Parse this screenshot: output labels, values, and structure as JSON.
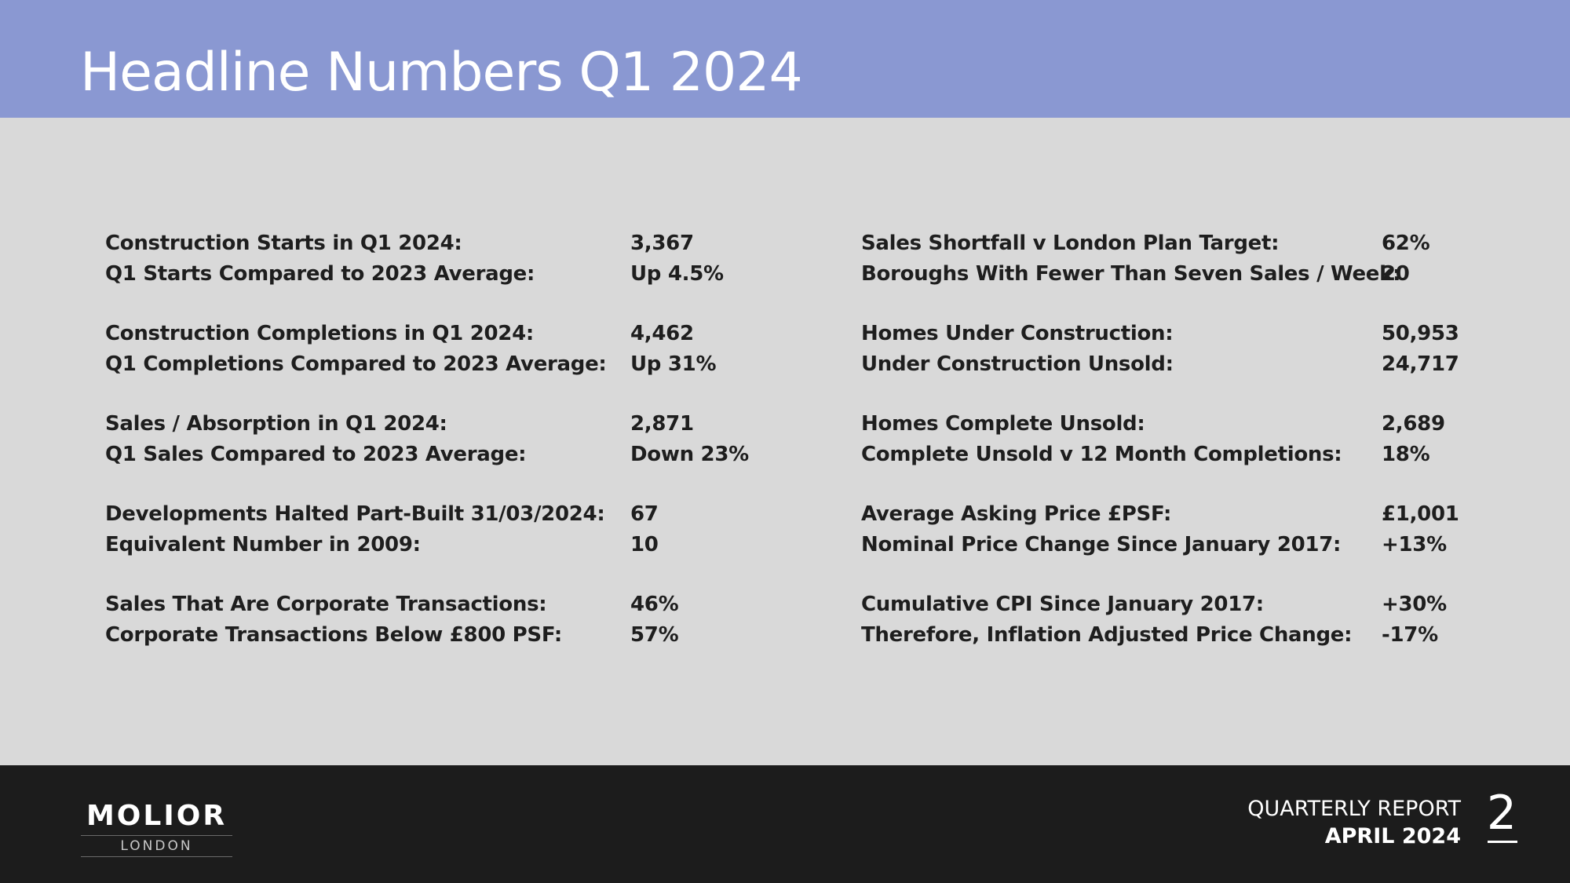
{
  "header": {
    "title": "Headline Numbers Q1 2024",
    "background_color": "#8a98d2"
  },
  "left_column": [
    [
      {
        "label": "Construction Starts in Q1 2024:",
        "value": "3,367"
      },
      {
        "label": "Q1 Starts Compared to 2023 Average:",
        "value": "Up 4.5%"
      }
    ],
    [
      {
        "label": "Construction Completions in Q1 2024:",
        "value": "4,462"
      },
      {
        "label": "Q1 Completions Compared to 2023 Average:",
        "value": "Up 31%"
      }
    ],
    [
      {
        "label": "Sales / Absorption in Q1 2024:",
        "value": "2,871"
      },
      {
        "label": "Q1 Sales Compared to 2023 Average:",
        "value": "Down 23%"
      }
    ],
    [
      {
        "label": "Developments Halted Part-Built 31/03/2024:",
        "value": "67"
      },
      {
        "label": "Equivalent Number in 2009:",
        "value": "10"
      }
    ],
    [
      {
        "label": "Sales That Are Corporate Transactions:",
        "value": "46%"
      },
      {
        "label": "Corporate Transactions Below £800 PSF:",
        "value": "57%"
      }
    ]
  ],
  "right_column": [
    [
      {
        "label": "Sales Shortfall v London Plan Target:",
        "value": "62%"
      },
      {
        "label": "Boroughs With Fewer Than Seven Sales / Week:",
        "value": "20"
      }
    ],
    [
      {
        "label": "Homes Under Construction:",
        "value": "50,953"
      },
      {
        "label": "Under Construction Unsold:",
        "value": "24,717"
      }
    ],
    [
      {
        "label": "Homes Complete Unsold:",
        "value": "2,689"
      },
      {
        "label": "Complete Unsold v 12 Month Completions:",
        "value": "18%"
      }
    ],
    [
      {
        "label": "Average Asking Price £PSF:",
        "value": "£1,001"
      },
      {
        "label": "Nominal Price Change Since January 2017:",
        "value": "+13%"
      }
    ],
    [
      {
        "label": "Cumulative CPI Since January 2017:",
        "value": "+30%"
      },
      {
        "label": "Therefore, Inflation Adjusted Price Change:",
        "value": "-17%"
      }
    ]
  ],
  "footer": {
    "logo_main": "MOLIOR",
    "logo_sub": "LONDON",
    "report_type": "QUARTERLY REPORT",
    "report_date": "APRIL 2024",
    "page_number": "2",
    "background_color": "#1c1c1c"
  }
}
